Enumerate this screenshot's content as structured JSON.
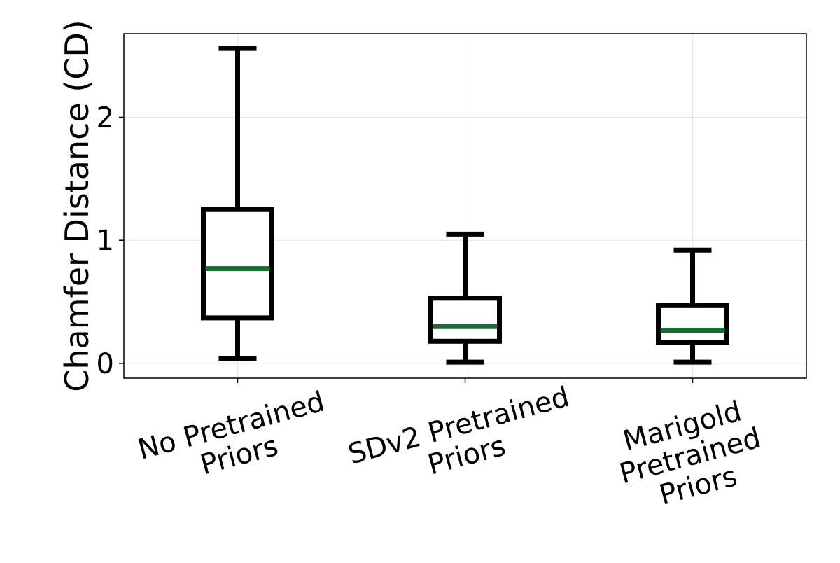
{
  "chart_data": {
    "type": "box",
    "title": "",
    "xlabel": "",
    "ylabel": "Chamfer Distance (CD)",
    "ylim": [
      -0.12,
      2.68
    ],
    "yticks": [
      0,
      1,
      2
    ],
    "grid": true,
    "categories": [
      [
        "No Pretrained",
        "Priors"
      ],
      [
        "SDv2 Pretrained",
        "Priors"
      ],
      [
        "Marigold",
        "Pretrained",
        "Priors"
      ]
    ],
    "boxes": [
      {
        "whisker_low": 0.04,
        "q1": 0.37,
        "median": 0.77,
        "q3": 1.25,
        "whisker_high": 2.56
      },
      {
        "whisker_low": 0.01,
        "q1": 0.18,
        "median": 0.3,
        "q3": 0.53,
        "whisker_high": 1.05
      },
      {
        "whisker_low": 0.01,
        "q1": 0.17,
        "median": 0.27,
        "q3": 0.47,
        "whisker_high": 0.92
      }
    ],
    "colors": {
      "box": "#000000",
      "median": "#1a6b35",
      "grid": "#e3e3e3"
    }
  }
}
